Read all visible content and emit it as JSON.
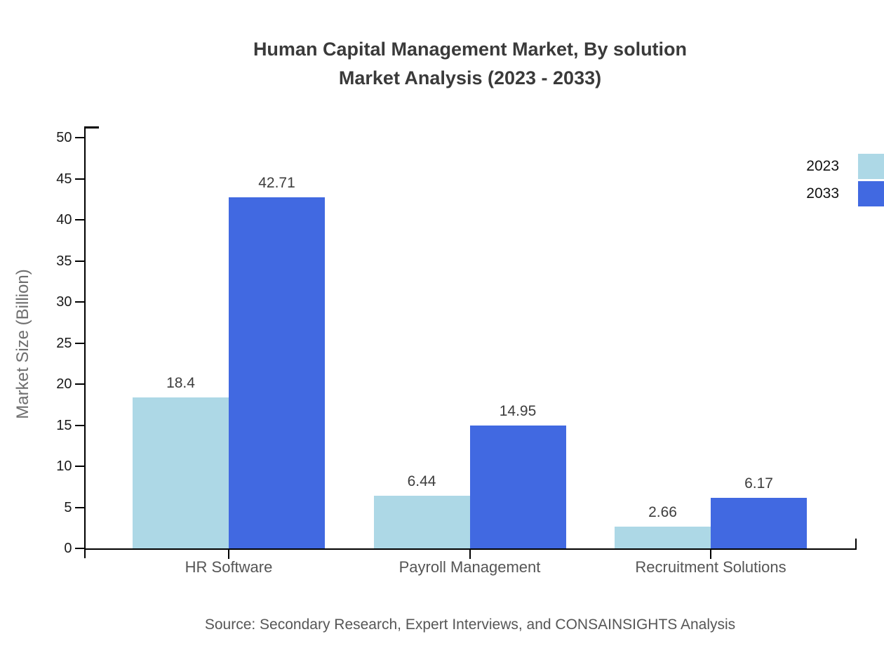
{
  "title": {
    "line1": "Human Capital Management Market, By solution",
    "line2": "Market Analysis (2023 - 2033)"
  },
  "source_note": "Source: Secondary Research, Expert Interviews, and CONSAINSIGHTS Analysis",
  "legend": {
    "items": [
      {
        "label": "2023",
        "color": "#ADD8E6"
      },
      {
        "label": "2033",
        "color": "#4169E1"
      }
    ]
  },
  "chart_data": {
    "type": "bar",
    "title": "Human Capital Management Market, By solution Market Analysis (2023 - 2033)",
    "categories": [
      "HR Software",
      "Payroll Management",
      "Recruitment Solutions"
    ],
    "series": [
      {
        "name": "2023",
        "color": "#ADD8E6",
        "values": [
          18.4,
          6.44,
          2.66
        ]
      },
      {
        "name": "2033",
        "color": "#4169E1",
        "values": [
          42.71,
          14.95,
          6.17
        ]
      }
    ],
    "xlabel": "",
    "ylabel": "Market Size (Billion)",
    "ylim": [
      0,
      50
    ],
    "ytick_step": 5,
    "grid": false,
    "legend_position": "top-right",
    "value_labels_shown": true
  },
  "colors": {
    "axis": "#000000",
    "title_text": "#3a3a3a",
    "tick_label": "#1a1a1a",
    "category_label": "#555555",
    "value_label": "#3d3d3d",
    "axis_title": "#6e6e6e",
    "source_text": "#565656",
    "background": "#ffffff"
  }
}
